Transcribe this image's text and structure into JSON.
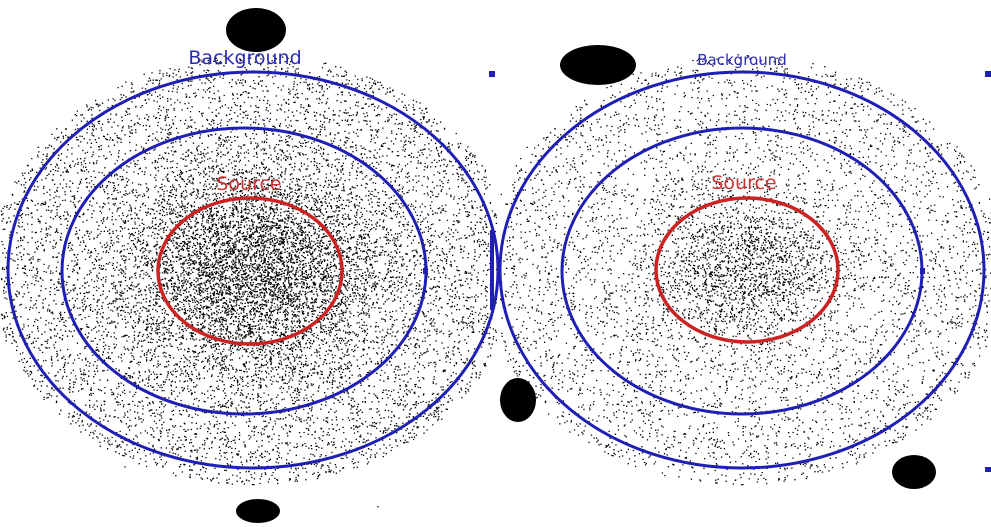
{
  "panels": [
    {
      "background_label": "Background",
      "source_label": "Source"
    },
    {
      "background_label": "Background",
      "source_label": "Source"
    }
  ]
}
